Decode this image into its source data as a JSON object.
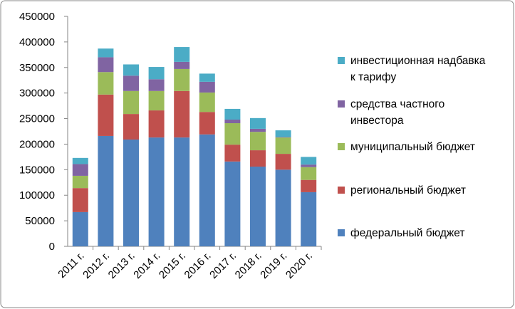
{
  "chart_data": {
    "type": "stacked_bar",
    "categories": [
      "2011 г.",
      "2012 г.",
      "2013 г.",
      "2014 г.",
      "2015 г.",
      "2016 г.",
      "2017 г.",
      "2018 г.",
      "2019 г.",
      "2020 г."
    ],
    "series": [
      {
        "name": "федеральный бюджет",
        "color": "#4f81bd",
        "values": [
          67000,
          216000,
          209000,
          213000,
          213000,
          219000,
          166000,
          156000,
          150000,
          106000
        ]
      },
      {
        "name": "региональный бюджет",
        "color": "#c0504d",
        "values": [
          47000,
          81000,
          50000,
          53000,
          91000,
          44000,
          33000,
          32000,
          31000,
          24000
        ]
      },
      {
        "name": "муниципальный бюджет",
        "color": "#9bbb59",
        "values": [
          24000,
          44000,
          45000,
          38000,
          43000,
          38000,
          42000,
          36000,
          32000,
          25000
        ]
      },
      {
        "name": "средства частного инвестора",
        "color": "#8064a2",
        "values": [
          23000,
          29000,
          30000,
          23000,
          14000,
          21000,
          7000,
          6000,
          1000,
          5000
        ]
      },
      {
        "name": "инвестиционная надбавка к тарифу",
        "color": "#4bacc6",
        "values": [
          12000,
          17000,
          22000,
          24000,
          29000,
          16000,
          21000,
          21000,
          13000,
          15000
        ]
      }
    ],
    "ylim": [
      0,
      450000
    ],
    "yticks": [
      0,
      50000,
      100000,
      150000,
      200000,
      250000,
      300000,
      350000,
      400000,
      450000
    ],
    "grid": false,
    "legend": "right"
  }
}
